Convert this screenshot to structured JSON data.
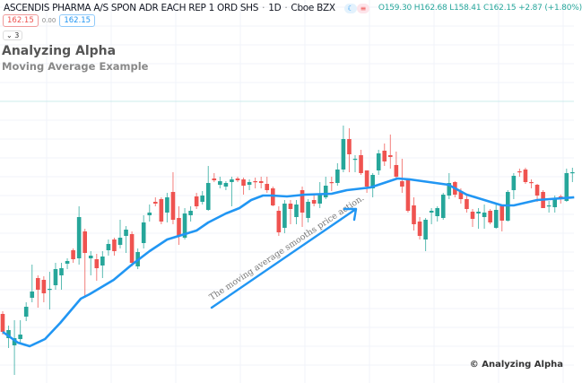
{
  "header": {
    "symbol": "ASCENDIS PHARMA A/S SPON ADR EACH REP 1 ORD SHS",
    "interval": "1D",
    "exchange": "Cboe BZX",
    "sep": "·",
    "icons": [
      "moon-icon",
      "market-status-icon"
    ],
    "ohlc": {
      "o_label": "O",
      "o": "159.30",
      "h_label": "H",
      "h": "162.68",
      "l_label": "L",
      "l": "158.41",
      "c_label": "C",
      "c": "162.15",
      "change": "+2.87 (+1.80%)"
    }
  },
  "price_badges": {
    "bid": "162.15",
    "spread": "0.00",
    "ask": "162.15"
  },
  "indicators_toggle": {
    "icon": "chevron-down-icon",
    "glyph": "⌄",
    "count": "3"
  },
  "title": "Analyzing Alpha",
  "subtitle": "Moving Average Example",
  "annotation": "The moving average smooths price action.",
  "watermark": "© Analyzing Alpha",
  "colors": {
    "up": "#26a69a",
    "down": "#ef5350",
    "ma": "#2196f3",
    "grid": "#f0f3fa",
    "annotation": "#777777"
  },
  "chart_data": {
    "type": "candlestick",
    "grid": true,
    "candles": [
      [
        149.2,
        149.5,
        146.9,
        147.2
      ],
      [
        146.5,
        147.9,
        145.4,
        147.4
      ],
      [
        145.7,
        148.5,
        142.4,
        146.5
      ],
      [
        146.4,
        148.5,
        145.9,
        146.9
      ],
      [
        148.9,
        150.5,
        148.4,
        150.0
      ],
      [
        151.0,
        154.7,
        150.5,
        151.7
      ],
      [
        153.2,
        153.5,
        149.9,
        151.9
      ],
      [
        153.0,
        153.4,
        150.5,
        151.5
      ],
      [
        151.9,
        153.9,
        149.7,
        152.0
      ],
      [
        152.4,
        154.9,
        151.9,
        154.2
      ],
      [
        153.5,
        154.9,
        151.9,
        154.3
      ],
      [
        154.8,
        155.4,
        154.2,
        155.1
      ],
      [
        156.3,
        156.5,
        154.9,
        155.3
      ],
      [
        155.4,
        161.2,
        154.7,
        160.0
      ],
      [
        158.4,
        158.7,
        151.0,
        156.0
      ],
      [
        155.4,
        156.2,
        153.5,
        155.7
      ],
      [
        155.3,
        155.9,
        152.9,
        154.3
      ],
      [
        154.6,
        156.2,
        153.2,
        155.6
      ],
      [
        156.3,
        157.5,
        155.7,
        157.0
      ],
      [
        157.5,
        157.7,
        155.7,
        156.2
      ],
      [
        156.9,
        159.7,
        156.5,
        157.7
      ],
      [
        157.9,
        159.0,
        156.0,
        158.6
      ],
      [
        158.1,
        158.4,
        154.5,
        154.9
      ],
      [
        154.5,
        156.5,
        154.2,
        156.1
      ],
      [
        157.1,
        160.2,
        156.5,
        159.4
      ],
      [
        160.2,
        161.4,
        159.5,
        160.5
      ],
      [
        161.7,
        162.2,
        161.2,
        161.5
      ],
      [
        162.0,
        162.2,
        159.2,
        159.5
      ],
      [
        160.5,
        162.7,
        159.4,
        162.2
      ],
      [
        162.8,
        165.0,
        159.2,
        159.7
      ],
      [
        159.9,
        161.2,
        156.9,
        157.9
      ],
      [
        157.7,
        161.0,
        157.5,
        160.4
      ],
      [
        160.2,
        161.2,
        159.5,
        160.7
      ],
      [
        162.3,
        162.7,
        160.9,
        161.2
      ],
      [
        161.7,
        162.9,
        161.4,
        162.4
      ],
      [
        160.8,
        165.7,
        160.7,
        163.8
      ],
      [
        164.3,
        164.9,
        163.9,
        164.1
      ],
      [
        163.6,
        164.5,
        163.2,
        164.0
      ],
      [
        163.4,
        164.0,
        163.0,
        163.8
      ],
      [
        163.9,
        164.5,
        161.2,
        164.2
      ],
      [
        164.3,
        164.5,
        163.9,
        164.1
      ],
      [
        164.2,
        164.4,
        162.5,
        163.5
      ],
      [
        163.6,
        164.2,
        163.0,
        163.9
      ],
      [
        164.0,
        164.4,
        163.2,
        163.9
      ],
      [
        164.0,
        164.5,
        163.2,
        163.8
      ],
      [
        163.7,
        164.5,
        162.7,
        163.0
      ],
      [
        163.2,
        163.4,
        161.2,
        161.3
      ],
      [
        160.7,
        161.2,
        157.9,
        158.3
      ],
      [
        158.8,
        161.9,
        158.2,
        161.5
      ],
      [
        161.5,
        161.9,
        159.2,
        160.9
      ],
      [
        160.0,
        161.9,
        159.2,
        161.4
      ],
      [
        163.0,
        163.4,
        158.9,
        160.5
      ],
      [
        159.9,
        162.0,
        159.4,
        161.7
      ],
      [
        161.9,
        162.5,
        161.2,
        161.5
      ],
      [
        161.5,
        163.9,
        161.0,
        162.6
      ],
      [
        162.2,
        164.5,
        162.0,
        163.5
      ],
      [
        163.9,
        164.5,
        162.9,
        163.8
      ],
      [
        163.8,
        166.0,
        163.5,
        165.3
      ],
      [
        165.3,
        170.2,
        165.0,
        168.7
      ],
      [
        168.7,
        169.9,
        165.0,
        167.0
      ],
      [
        166.4,
        166.9,
        165.0,
        166.5
      ],
      [
        166.9,
        167.5,
        164.7,
        164.9
      ],
      [
        165.2,
        165.2,
        162.7,
        163.4
      ],
      [
        163.2,
        164.9,
        162.2,
        164.7
      ],
      [
        165.2,
        167.5,
        164.7,
        167.1
      ],
      [
        167.4,
        168.2,
        165.7,
        166.2
      ],
      [
        166.9,
        169.2,
        165.4,
        166.7
      ],
      [
        165.8,
        167.3,
        164.2,
        164.5
      ],
      [
        164.0,
        166.5,
        162.7,
        163.4
      ],
      [
        164.1,
        164.2,
        160.5,
        160.7
      ],
      [
        161.3,
        162.2,
        158.5,
        159.2
      ],
      [
        159.5,
        160.0,
        157.5,
        157.9
      ],
      [
        157.5,
        159.9,
        156.2,
        159.7
      ],
      [
        160.5,
        161.0,
        159.2,
        160.7
      ],
      [
        160.1,
        161.2,
        159.5,
        161.0
      ],
      [
        159.9,
        162.7,
        159.7,
        162.5
      ],
      [
        162.4,
        164.9,
        162.0,
        163.8
      ],
      [
        163.9,
        164.0,
        162.2,
        162.5
      ],
      [
        162.9,
        163.2,
        161.5,
        162.0
      ],
      [
        162.0,
        162.4,
        160.5,
        160.9
      ],
      [
        160.6,
        160.9,
        158.9,
        159.8
      ],
      [
        160.4,
        161.0,
        158.7,
        160.6
      ],
      [
        160.0,
        161.4,
        158.7,
        160.5
      ],
      [
        160.7,
        160.9,
        159.2,
        159.4
      ],
      [
        158.8,
        161.5,
        158.7,
        160.8
      ],
      [
        161.3,
        161.4,
        158.4,
        159.6
      ],
      [
        159.6,
        163.0,
        159.5,
        162.8
      ],
      [
        163.0,
        164.9,
        162.0,
        164.6
      ],
      [
        165.1,
        165.4,
        164.5,
        165.0
      ],
      [
        165.3,
        165.5,
        163.7,
        163.9
      ],
      [
        163.9,
        164.2,
        163.2,
        163.8
      ],
      [
        163.6,
        163.7,
        161.7,
        162.4
      ],
      [
        162.8,
        163.0,
        161.0,
        161.0
      ],
      [
        161.2,
        161.8,
        160.5,
        161.3
      ],
      [
        161.1,
        162.4,
        160.5,
        162.0
      ],
      [
        162.3,
        162.5,
        161.5,
        162.0
      ],
      [
        161.8,
        165.4,
        161.7,
        164.9
      ],
      [
        164.9,
        165.5,
        163.9,
        165.0
      ]
    ],
    "moving_average": {
      "index": [
        0,
        2.6,
        4.6,
        7.2,
        9.8,
        13.3,
        14.8,
        18.9,
        22,
        25,
        28,
        30.5,
        33,
        35,
        38,
        40.3,
        42.3,
        44.3,
        45.8,
        48.4,
        51.5,
        56,
        58.6,
        62.6,
        67.2,
        69.3,
        75.9,
        79,
        85,
        87,
        91,
        97.3
      ],
      "value": [
        147.2,
        146.0,
        145.6,
        146.4,
        148.2,
        150.9,
        151.4,
        153.0,
        154.7,
        156.2,
        157.5,
        158.0,
        158.5,
        159.4,
        160.4,
        161.0,
        161.9,
        162.4,
        162.4,
        162.3,
        162.5,
        162.6,
        163.0,
        163.3,
        164.3,
        164.2,
        163.6,
        162.5,
        161.3,
        161.3,
        161.9,
        162.2
      ]
    }
  }
}
